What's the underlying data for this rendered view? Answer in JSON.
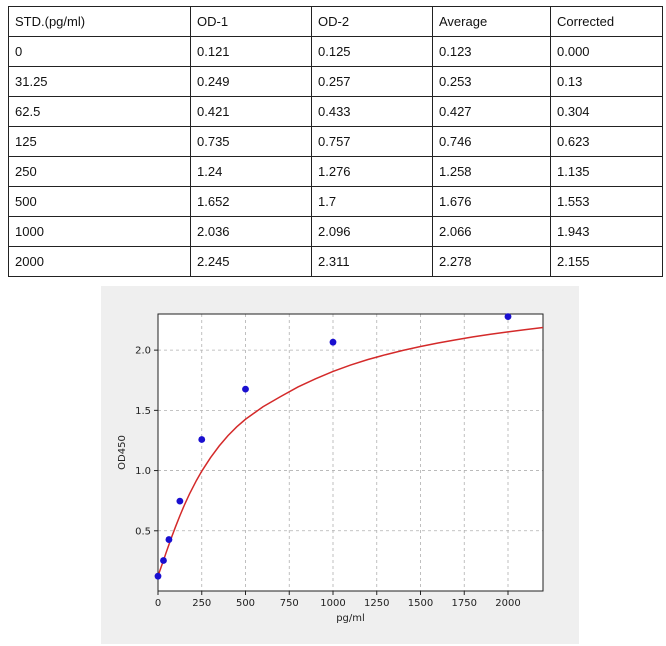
{
  "table": {
    "headers": [
      "STD.(pg/ml)",
      "OD-1",
      "OD-2",
      "Average",
      "Corrected"
    ],
    "rows": [
      [
        "0",
        "0.121",
        "0.125",
        "0.123",
        "0.000"
      ],
      [
        "31.25",
        "0.249",
        "0.257",
        "0.253",
        "0.13"
      ],
      [
        "62.5",
        "0.421",
        "0.433",
        "0.427",
        "0.304"
      ],
      [
        "125",
        "0.735",
        "0.757",
        "0.746",
        "0.623"
      ],
      [
        "250",
        "1.24",
        "1.276",
        "1.258",
        "1.135"
      ],
      [
        "500",
        "1.652",
        "1.7",
        "1.676",
        "1.553"
      ],
      [
        "1000",
        "2.036",
        "2.096",
        "2.066",
        "1.943"
      ],
      [
        "2000",
        "2.245",
        "2.311",
        "2.278",
        "2.155"
      ]
    ]
  },
  "chart_data": {
    "type": "scatter",
    "xlabel": "pg/ml",
    "ylabel": "OD450",
    "xlim": [
      0,
      2200
    ],
    "ylim": [
      0.0,
      2.3
    ],
    "xticks": [
      0,
      250,
      500,
      750,
      1000,
      1250,
      1500,
      1750,
      2000
    ],
    "yticks": [
      0.5,
      1.0,
      1.5,
      2.0
    ],
    "xtick_labels": [
      "0",
      "250",
      "500",
      "750",
      "1000",
      "1250",
      "1500",
      "1750",
      "2000"
    ],
    "ytick_labels": [
      "0.5",
      "1.0",
      "1.5",
      "2.0"
    ],
    "grid": true,
    "points": {
      "x": [
        0,
        31.25,
        62.5,
        125,
        250,
        500,
        1000,
        2000
      ],
      "y": [
        0.123,
        0.253,
        0.427,
        0.746,
        1.258,
        1.676,
        2.066,
        2.278
      ]
    },
    "fit_curve": {
      "x": [
        0,
        10,
        20,
        31.25,
        45,
        62.5,
        80,
        100,
        125,
        150,
        180,
        220,
        250,
        300,
        350,
        400,
        450,
        500,
        600,
        700,
        800,
        900,
        1000,
        1100,
        1200,
        1300,
        1400,
        1500,
        1600,
        1700,
        1800,
        1900,
        2000,
        2100,
        2200
      ],
      "y": [
        0.123,
        0.166,
        0.208,
        0.253,
        0.313,
        0.385,
        0.456,
        0.533,
        0.625,
        0.711,
        0.806,
        0.919,
        0.995,
        1.107,
        1.205,
        1.29,
        1.363,
        1.426,
        1.53,
        1.614,
        1.694,
        1.762,
        1.823,
        1.876,
        1.922,
        1.962,
        1.998,
        2.03,
        2.059,
        2.085,
        2.11,
        2.132,
        2.152,
        2.17,
        2.188
      ]
    },
    "colors": {
      "points": "#1a0fd0",
      "curve": "#d42a2a",
      "grid": "#b0b0b0",
      "plot_background": "#ffffff",
      "panel_background": "#efefef"
    }
  }
}
